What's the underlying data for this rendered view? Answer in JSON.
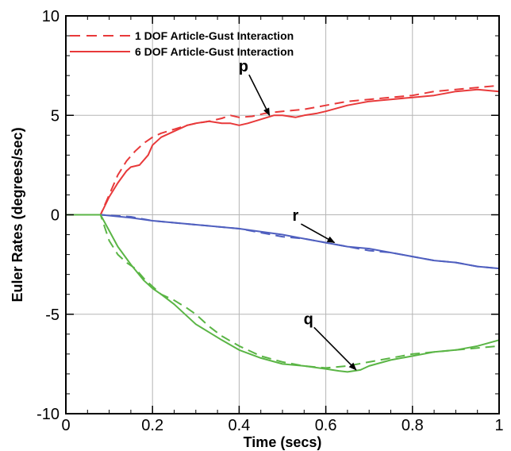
{
  "chart_data": {
    "type": "line",
    "xlabel": "Time (secs)",
    "ylabel": "Euler Rates (degrees/sec)",
    "xlim": [
      0,
      1
    ],
    "ylim": [
      -10,
      10
    ],
    "xticks": [
      0,
      0.2,
      0.4,
      0.6,
      0.8,
      1
    ],
    "xtick_labels": [
      "0",
      "0.2",
      "0.4",
      "0.6",
      "0.8",
      "1"
    ],
    "yticks": [
      -10,
      -5,
      0,
      5,
      10
    ],
    "ytick_labels": [
      "-10",
      "-5",
      "0",
      "5",
      "10"
    ],
    "grid": true,
    "legend_position": "top-left",
    "legend": [
      {
        "label": "1 DOF Article-Gust Interaction",
        "style": "dashed",
        "color": "#e8393a"
      },
      {
        "label": "6 DOF Article-Gust Interaction",
        "style": "solid",
        "color": "#e8393a"
      }
    ],
    "annotations": [
      {
        "text": "p",
        "target_x": 0.47,
        "target_y": 5.0,
        "label_x": 0.41,
        "label_y": 7.2
      },
      {
        "text": "r",
        "target_x": 0.62,
        "target_y": -1.4,
        "label_x": 0.53,
        "label_y": -0.3
      },
      {
        "text": "q",
        "target_x": 0.67,
        "target_y": -7.8,
        "label_x": 0.56,
        "label_y": -5.5
      }
    ],
    "series": [
      {
        "id": "p_1dof",
        "color": "#e8393a",
        "style": "dashed",
        "x": [
          0,
          0.08,
          0.1,
          0.12,
          0.14,
          0.16,
          0.18,
          0.2,
          0.22,
          0.25,
          0.28,
          0.3,
          0.33,
          0.36,
          0.38,
          0.4,
          0.43,
          0.46,
          0.5,
          0.55,
          0.6,
          0.65,
          0.7,
          0.75,
          0.8,
          0.85,
          0.9,
          0.95,
          1.0
        ],
        "y": [
          0,
          0,
          1.0,
          2.0,
          2.7,
          3.2,
          3.6,
          3.9,
          4.1,
          4.3,
          4.5,
          4.6,
          4.7,
          4.85,
          5.0,
          4.9,
          4.95,
          5.1,
          5.2,
          5.3,
          5.5,
          5.7,
          5.8,
          5.9,
          6.0,
          6.2,
          6.3,
          6.4,
          6.5
        ]
      },
      {
        "id": "p_6dof",
        "color": "#e8393a",
        "style": "solid",
        "x": [
          0,
          0.08,
          0.1,
          0.12,
          0.14,
          0.15,
          0.17,
          0.19,
          0.2,
          0.22,
          0.25,
          0.28,
          0.3,
          0.33,
          0.36,
          0.38,
          0.4,
          0.42,
          0.45,
          0.48,
          0.5,
          0.53,
          0.55,
          0.58,
          0.6,
          0.65,
          0.7,
          0.75,
          0.8,
          0.85,
          0.9,
          0.95,
          1.0
        ],
        "y": [
          0,
          0,
          0.9,
          1.6,
          2.2,
          2.4,
          2.5,
          3.0,
          3.5,
          3.9,
          4.2,
          4.5,
          4.6,
          4.7,
          4.6,
          4.6,
          4.5,
          4.6,
          4.8,
          5.0,
          5.0,
          4.9,
          5.0,
          5.1,
          5.2,
          5.5,
          5.7,
          5.8,
          5.9,
          6.0,
          6.2,
          6.3,
          6.2
        ]
      },
      {
        "id": "r_1dof",
        "color": "#4f5fbf",
        "style": "dashed",
        "x": [
          0,
          0.08,
          0.15,
          0.2,
          0.3,
          0.4,
          0.45,
          0.5,
          0.55,
          0.6,
          0.65,
          0.7,
          0.75,
          0.8,
          0.85,
          0.9,
          0.95,
          1.0
        ],
        "y": [
          0,
          0,
          -0.1,
          -0.3,
          -0.5,
          -0.7,
          -0.9,
          -1.1,
          -1.2,
          -1.4,
          -1.6,
          -1.8,
          -1.9,
          -2.1,
          -2.3,
          -2.4,
          -2.6,
          -2.7
        ]
      },
      {
        "id": "r_6dof",
        "color": "#4f5fbf",
        "style": "solid",
        "x": [
          0,
          0.08,
          0.15,
          0.2,
          0.3,
          0.4,
          0.45,
          0.5,
          0.55,
          0.6,
          0.65,
          0.7,
          0.75,
          0.8,
          0.85,
          0.9,
          0.95,
          1.0
        ],
        "y": [
          0,
          0,
          -0.15,
          -0.3,
          -0.5,
          -0.7,
          -0.85,
          -1.0,
          -1.2,
          -1.4,
          -1.6,
          -1.7,
          -1.9,
          -2.1,
          -2.3,
          -2.4,
          -2.6,
          -2.7
        ]
      },
      {
        "id": "q_1dof",
        "color": "#5ab545",
        "style": "dashed",
        "x": [
          0,
          0.08,
          0.1,
          0.12,
          0.14,
          0.16,
          0.18,
          0.2,
          0.22,
          0.25,
          0.28,
          0.3,
          0.33,
          0.36,
          0.4,
          0.45,
          0.5,
          0.55,
          0.6,
          0.65,
          0.7,
          0.75,
          0.8,
          0.85,
          0.9,
          0.95,
          1.0
        ],
        "y": [
          0,
          0,
          -1.3,
          -2.0,
          -2.4,
          -2.7,
          -3.2,
          -3.6,
          -4.0,
          -4.3,
          -4.7,
          -5.0,
          -5.6,
          -6.1,
          -6.6,
          -7.1,
          -7.4,
          -7.6,
          -7.7,
          -7.6,
          -7.4,
          -7.2,
          -7.0,
          -6.9,
          -6.8,
          -6.7,
          -6.6
        ]
      },
      {
        "id": "q_6dof",
        "color": "#5ab545",
        "style": "solid",
        "x": [
          0,
          0.08,
          0.1,
          0.12,
          0.15,
          0.18,
          0.2,
          0.22,
          0.25,
          0.28,
          0.3,
          0.33,
          0.36,
          0.4,
          0.45,
          0.5,
          0.55,
          0.6,
          0.63,
          0.65,
          0.68,
          0.7,
          0.75,
          0.8,
          0.85,
          0.9,
          0.95,
          1.0
        ],
        "y": [
          0,
          0,
          -0.8,
          -1.6,
          -2.5,
          -3.3,
          -3.7,
          -4.0,
          -4.5,
          -5.1,
          -5.5,
          -5.9,
          -6.3,
          -6.8,
          -7.2,
          -7.5,
          -7.6,
          -7.75,
          -7.85,
          -7.9,
          -7.8,
          -7.6,
          -7.3,
          -7.1,
          -6.9,
          -6.8,
          -6.6,
          -6.3
        ]
      }
    ]
  }
}
